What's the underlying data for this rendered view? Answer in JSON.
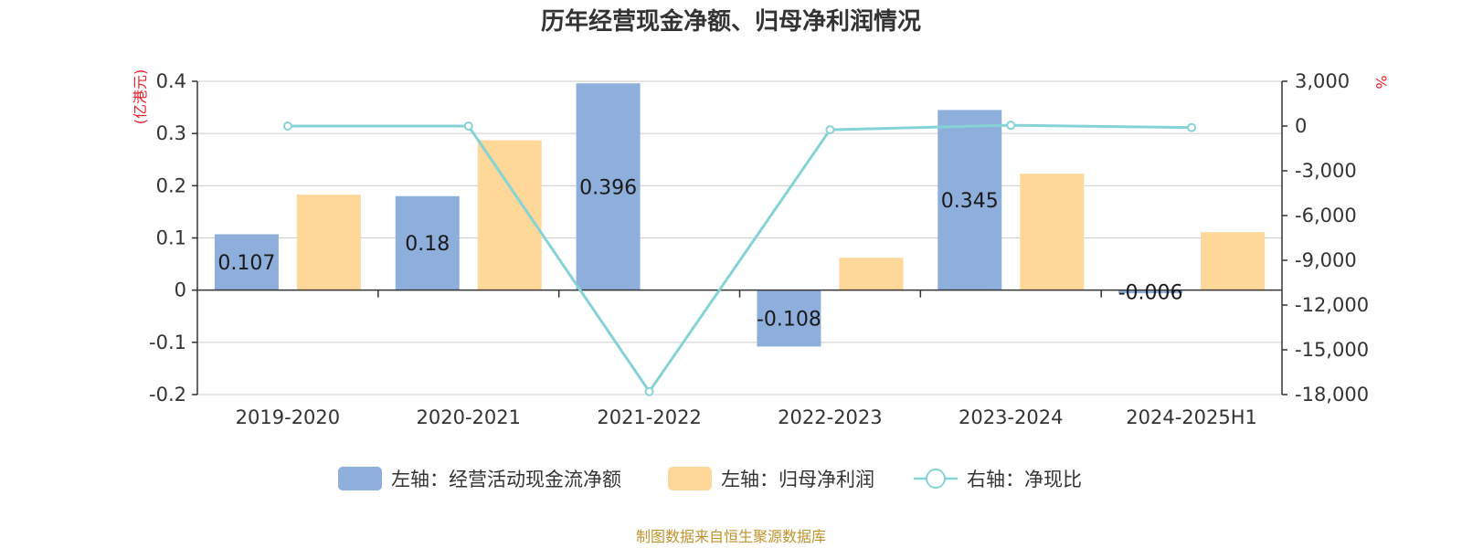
{
  "chart_data": {
    "type": "bar",
    "title": "历年经营现金净额、归母净利润情况",
    "left_axis_unit": "(亿港元)",
    "right_axis_unit": "%",
    "categories": [
      "2019-2020",
      "2020-2021",
      "2021-2022",
      "2022-2023",
      "2023-2024",
      "2024-2025H1"
    ],
    "left_ylim": [
      -0.2,
      0.4
    ],
    "left_ticks": [
      "0.4",
      "0.3",
      "0.2",
      "0.1",
      "0",
      "-0.1",
      "-0.2"
    ],
    "left_tick_values": [
      0.4,
      0.3,
      0.2,
      0.1,
      0,
      -0.1,
      -0.2
    ],
    "right_ylim": [
      -18000,
      3000
    ],
    "right_ticks": [
      "3,000",
      "0",
      "-3,000",
      "-6,000",
      "-9,000",
      "-12,000",
      "-15,000",
      "-18,000"
    ],
    "right_tick_values": [
      3000,
      0,
      -3000,
      -6000,
      -9000,
      -12000,
      -15000,
      -18000
    ],
    "series": [
      {
        "name": "左轴：经营活动现金流净额",
        "type": "bar",
        "axis": "left",
        "color": "#8eaedb",
        "values": [
          0.107,
          0.18,
          0.396,
          -0.108,
          0.345,
          -0.006
        ],
        "labels": [
          "0.107",
          "0.18",
          "0.396",
          "-0.108",
          "0.345",
          "-0.006"
        ]
      },
      {
        "name": "左轴：归母净利润",
        "type": "bar",
        "axis": "left",
        "color": "#fdd898",
        "values": [
          0.183,
          0.287,
          0.001,
          0.062,
          0.223,
          0.111
        ]
      },
      {
        "name": "右轴：净现比",
        "type": "line",
        "axis": "right",
        "color": "#86d3d6",
        "values": [
          0,
          0,
          -17800,
          -250,
          50,
          -100
        ]
      }
    ],
    "grid": true,
    "legend_position": "bottom"
  },
  "source": "制图数据来自恒生聚源数据库"
}
